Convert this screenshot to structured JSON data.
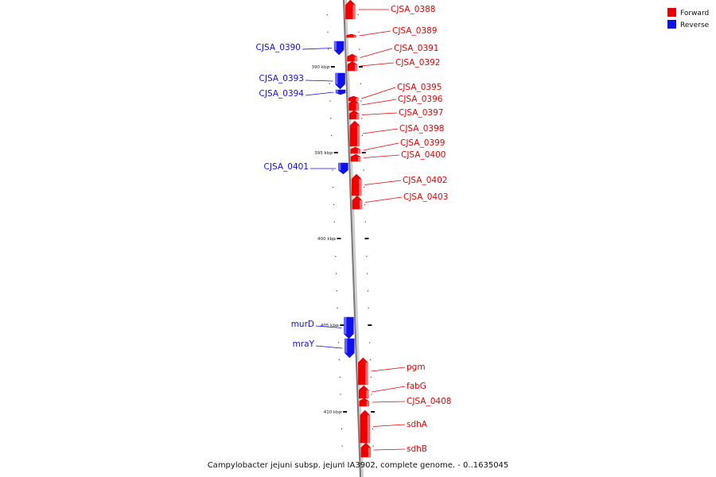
{
  "legend": {
    "forward": {
      "label": "Forward",
      "color": "#ee0000"
    },
    "reverse": {
      "label": "Reverse",
      "color": "#1010ee"
    }
  },
  "caption": "Campylobacter jejuni subsp. jejuni IA3902, complete genome. - 0..1635045",
  "scale": {
    "ticks": [
      "390 kbp",
      "395 kbp",
      "400 kbp",
      "405 kbp",
      "410 kbp"
    ]
  },
  "genes": [
    {
      "name": "CJSA_0388",
      "strand": "forward"
    },
    {
      "name": "CJSA_0389",
      "strand": "forward"
    },
    {
      "name": "CJSA_0390",
      "strand": "reverse"
    },
    {
      "name": "CJSA_0391",
      "strand": "forward"
    },
    {
      "name": "CJSA_0392",
      "strand": "forward"
    },
    {
      "name": "CJSA_0393",
      "strand": "reverse"
    },
    {
      "name": "CJSA_0394",
      "strand": "reverse"
    },
    {
      "name": "CJSA_0395",
      "strand": "forward"
    },
    {
      "name": "CJSA_0396",
      "strand": "forward"
    },
    {
      "name": "CJSA_0397",
      "strand": "forward"
    },
    {
      "name": "CJSA_0398",
      "strand": "forward"
    },
    {
      "name": "CJSA_0399",
      "strand": "forward"
    },
    {
      "name": "CJSA_0400",
      "strand": "forward"
    },
    {
      "name": "CJSA_0401",
      "strand": "reverse"
    },
    {
      "name": "CJSA_0402",
      "strand": "forward"
    },
    {
      "name": "CJSA_0403",
      "strand": "forward"
    },
    {
      "name": "murD",
      "strand": "reverse"
    },
    {
      "name": "mraY",
      "strand": "reverse"
    },
    {
      "name": "pgm",
      "strand": "forward"
    },
    {
      "name": "fabG",
      "strand": "forward"
    },
    {
      "name": "CJSA_0408",
      "strand": "forward"
    },
    {
      "name": "sdhA",
      "strand": "forward"
    },
    {
      "name": "sdhB",
      "strand": "forward"
    }
  ]
}
